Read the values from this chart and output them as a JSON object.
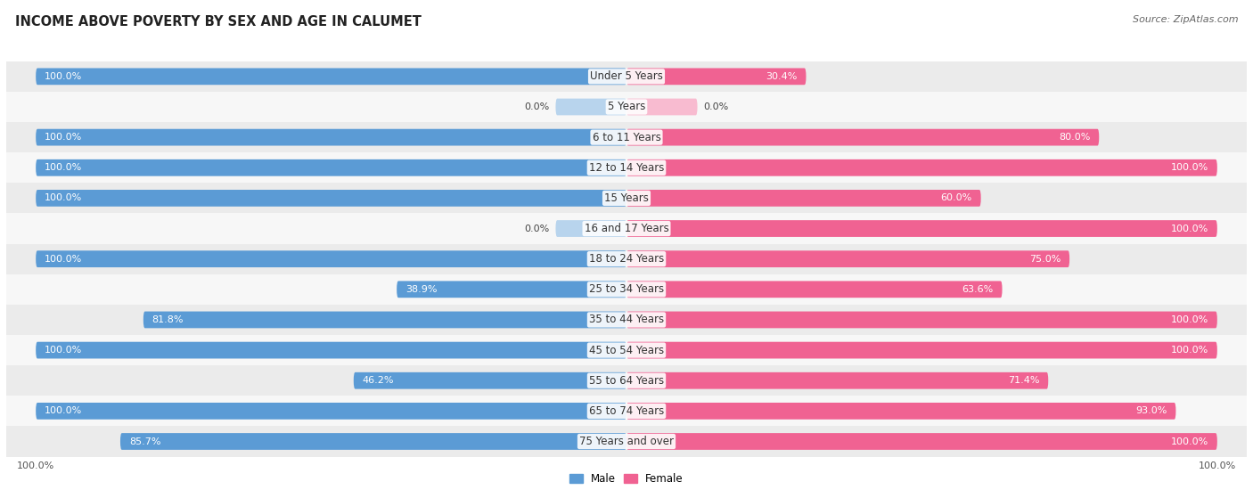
{
  "title": "INCOME ABOVE POVERTY BY SEX AND AGE IN CALUMET",
  "source": "Source: ZipAtlas.com",
  "categories": [
    "Under 5 Years",
    "5 Years",
    "6 to 11 Years",
    "12 to 14 Years",
    "15 Years",
    "16 and 17 Years",
    "18 to 24 Years",
    "25 to 34 Years",
    "35 to 44 Years",
    "45 to 54 Years",
    "55 to 64 Years",
    "65 to 74 Years",
    "75 Years and over"
  ],
  "male": [
    100.0,
    0.0,
    100.0,
    100.0,
    100.0,
    0.0,
    100.0,
    38.9,
    81.8,
    100.0,
    46.2,
    100.0,
    85.7
  ],
  "female": [
    30.4,
    0.0,
    80.0,
    100.0,
    60.0,
    100.0,
    75.0,
    63.6,
    100.0,
    100.0,
    71.4,
    93.0,
    100.0
  ],
  "male_color": "#5b9bd5",
  "female_color": "#f06292",
  "male_color_light": "#b8d4ed",
  "female_color_light": "#f8bbd0",
  "bg_row_dark": "#e8e8e8",
  "bg_row_light": "#f5f5f5",
  "bar_height": 0.55,
  "title_fontsize": 10.5,
  "label_fontsize": 8.5,
  "value_fontsize": 8.0,
  "tick_fontsize": 8,
  "source_fontsize": 8
}
